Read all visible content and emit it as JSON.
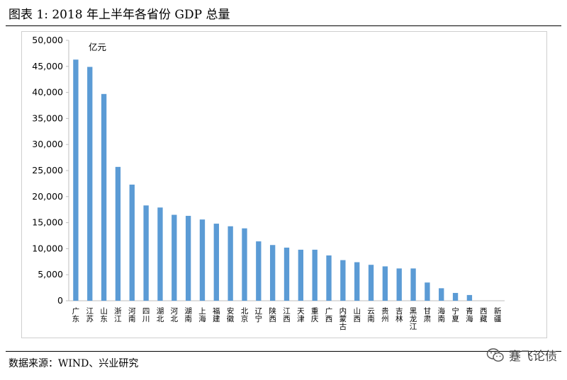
{
  "header": {
    "title": "图表 1:  2018 年上半年各省份 GDP 总量"
  },
  "footer": {
    "source": "数据来源：WIND、兴业研究",
    "watermark_text": "蹇飞论债"
  },
  "colors": {
    "bar": "#5b9bd5",
    "axis": "#bfbfbf",
    "text": "#000000"
  },
  "chart_data": {
    "type": "bar",
    "unit_label": "亿元",
    "ylim": [
      0,
      50000
    ],
    "y_ticks": [
      "0",
      "5,000",
      "10,000",
      "15,000",
      "20,000",
      "25,000",
      "30,000",
      "35,000",
      "40,000",
      "45,000",
      "50,000"
    ],
    "grid": false,
    "categories": [
      "广东",
      "江苏",
      "山东",
      "浙江",
      "河南",
      "四川",
      "湖北",
      "河北",
      "湖南",
      "上海",
      "福建",
      "安徽",
      "北京",
      "辽宁",
      "陕西",
      "江西",
      "天津",
      "重庆",
      "广西",
      "内蒙古",
      "山西",
      "云南",
      "贵州",
      "吉林",
      "黑龙江",
      "甘肃",
      "海南",
      "宁夏",
      "青海",
      "西藏",
      "新疆"
    ],
    "values": [
      46300,
      44900,
      39700,
      25700,
      22300,
      18300,
      17900,
      16500,
      16300,
      15600,
      14800,
      14300,
      13900,
      11400,
      10700,
      10200,
      9800,
      9800,
      8700,
      7800,
      7400,
      6900,
      6600,
      6200,
      6200,
      3500,
      2400,
      1500,
      1100,
      0,
      0
    ]
  }
}
